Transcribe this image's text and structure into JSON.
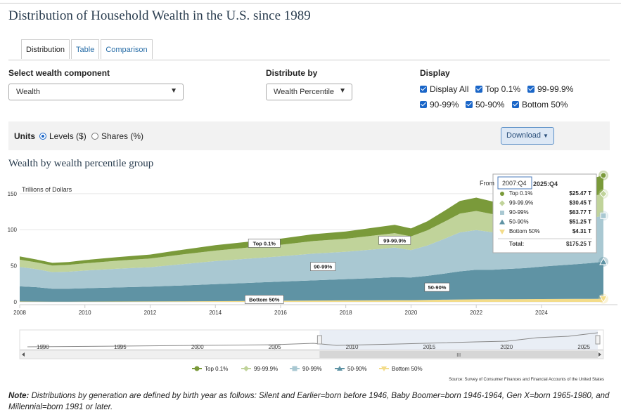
{
  "page": {
    "title": "Distribution of Household Wealth in the U.S. since 1989"
  },
  "tabs": [
    {
      "label": "Distribution",
      "active": true
    },
    {
      "label": "Table",
      "active": false
    },
    {
      "label": "Comparison",
      "active": false
    }
  ],
  "controls": {
    "component_label": "Select wealth component",
    "component_value": "Wealth",
    "distribute_label": "Distribute by",
    "distribute_value": "Wealth Percentile",
    "display_label": "Display",
    "display_options": [
      {
        "label": "Display All",
        "checked": true
      },
      {
        "label": "Top 0.1%",
        "checked": true
      },
      {
        "label": "99-99.9%",
        "checked": true
      },
      {
        "label": "90-99%",
        "checked": true
      },
      {
        "label": "50-90%",
        "checked": true
      },
      {
        "label": "Bottom 50%",
        "checked": true
      }
    ]
  },
  "units": {
    "label": "Units",
    "levels_label": "Levels ($)",
    "shares_label": "Shares (%)",
    "selected": "levels",
    "download_label": "Download"
  },
  "chart_title": "Wealth by wealth percentile group",
  "tooltip": {
    "from_label": "From",
    "from_value": "2007:Q4",
    "to_value": "2025:Q4",
    "rows": [
      {
        "label": "Top 0.1%",
        "value": "$25.47 T"
      },
      {
        "label": "99-99.9%",
        "value": "$30.45 T"
      },
      {
        "label": "90-99%",
        "value": "$63.77 T"
      },
      {
        "label": "50-90%",
        "value": "$51.25 T"
      },
      {
        "label": "Bottom 50%",
        "value": "$4.31 T"
      }
    ],
    "total_label": "Total:",
    "total_value": "$175.25 T"
  },
  "navigator": {
    "ticks": [
      "1990",
      "1995",
      "2000",
      "2005",
      "2010",
      "2015",
      "2020",
      "2025"
    ],
    "scroll_grip": "III"
  },
  "source": "Source: Survey of Consumer Finances and Financial Accounts of the United States",
  "note": {
    "label": "Note:",
    "text": " Distributions by generation are defined by birth year as follows: Silent and Earlier=born before 1946, Baby Boomer=born 1946-1964, Gen X=born 1965-1980, and Millennial=born 1981 or later."
  },
  "colors": {
    "top01": "#7a9a3a",
    "p99": "#c0d39a",
    "p90": "#a9c8d2",
    "p50": "#5f93a4",
    "bottom50": "#f3dc8a"
  },
  "chart_data": {
    "type": "area",
    "stacked": true,
    "ylabel": "Trillions of Dollars",
    "yticks": [
      0,
      50,
      100,
      150
    ],
    "ylim": [
      0,
      180
    ],
    "xlim": [
      2008,
      2025.9
    ],
    "xticks": [
      2008,
      2010,
      2012,
      2014,
      2016,
      2018,
      2020,
      2022,
      2024
    ],
    "x": [
      2008,
      2008.5,
      2009,
      2009.5,
      2010,
      2011,
      2012,
      2013,
      2014,
      2015,
      2016,
      2017,
      2018,
      2019,
      2019.5,
      2020,
      2020.5,
      2021,
      2021.5,
      2022,
      2022.5,
      2023,
      2023.5,
      2024,
      2024.5,
      2025,
      2025.5,
      2025.9
    ],
    "series": [
      {
        "name": "Bottom 50%",
        "values": [
          0.5,
          0.4,
          0.3,
          0.3,
          0.4,
          0.5,
          0.6,
          0.8,
          1.0,
          1.3,
          1.6,
          1.8,
          2.0,
          2.2,
          2.3,
          2.3,
          2.6,
          3.0,
          3.3,
          3.5,
          3.6,
          3.7,
          3.8,
          3.9,
          4.0,
          4.1,
          4.2,
          4.31
        ]
      },
      {
        "name": "50-90%",
        "values": [
          21,
          20,
          18,
          18,
          18.5,
          19.5,
          20.5,
          22,
          23.5,
          25,
          26.5,
          28,
          29.5,
          31,
          32,
          31.5,
          33.5,
          36,
          39,
          41,
          41,
          42,
          43,
          45,
          46.5,
          48,
          49.5,
          51.25
        ]
      },
      {
        "name": "90-99%",
        "values": [
          27,
          25,
          23,
          23.5,
          24.5,
          26,
          27,
          29.5,
          32,
          33.5,
          35,
          37,
          38,
          40,
          41,
          38,
          42,
          48,
          54,
          55,
          52,
          54,
          56,
          58,
          60,
          61,
          62.5,
          63.77
        ]
      },
      {
        "name": "99-99.9%",
        "values": [
          10,
          9.5,
          9,
          9.5,
          10,
          11,
          12,
          13.5,
          14.5,
          15.5,
          16,
          17.5,
          18,
          19.5,
          20,
          19,
          21,
          23.5,
          26,
          26.5,
          25,
          26,
          27,
          28,
          29,
          29.5,
          30,
          30.45
        ]
      },
      {
        "name": "Top 0.1%",
        "values": [
          4.5,
          4,
          3.8,
          4,
          4.5,
          5,
          5.5,
          6.5,
          7.5,
          8,
          8.5,
          9.5,
          10,
          11,
          11.5,
          11,
          12.5,
          15,
          17.5,
          18.5,
          17.5,
          18.5,
          19.5,
          21,
          22.5,
          23.5,
          24.5,
          25.47
        ]
      }
    ],
    "band_labels": [
      {
        "text": "Top 0.1%",
        "series": "Top 0.1%",
        "x": 2015.5
      },
      {
        "text": "99-99.9%",
        "series": "99-99.9%",
        "x": 2019.5
      },
      {
        "text": "90-99%",
        "series": "90-99%",
        "x": 2017.3
      },
      {
        "text": "50-90%",
        "series": "50-90%",
        "x": 2020.8
      },
      {
        "text": "Bottom 50%",
        "series": "Bottom 50%",
        "x": 2015.5
      }
    ],
    "legend": [
      "Top 0.1%",
      "99-99.9%",
      "90-99%",
      "50-90%",
      "Bottom 50%"
    ]
  }
}
